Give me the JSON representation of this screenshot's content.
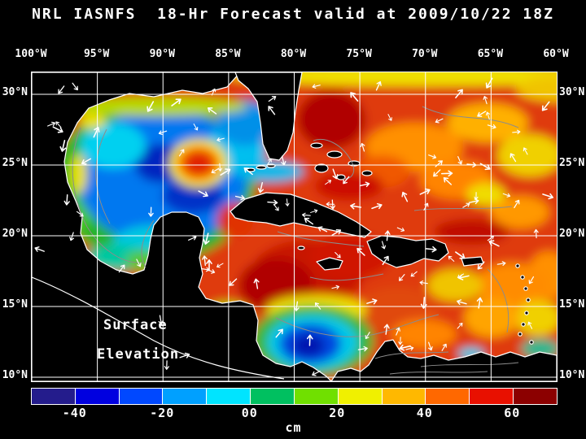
{
  "title": "NRL IASNFS  18-Hr Forecast valid at 2009/10/22 18Z",
  "axes": {
    "longitude_labels": [
      "100°W",
      "95°W",
      "90°W",
      "85°W",
      "80°W",
      "75°W",
      "70°W",
      "65°W",
      "60°W"
    ],
    "latitude_labels": [
      "30°N",
      "25°N",
      "20°N",
      "15°N",
      "10°N"
    ]
  },
  "map": {
    "annotation_line1": "Surface",
    "annotation_line2": "Elevation"
  },
  "colorbar": {
    "unit": "cm",
    "tick_labels": [
      "-40",
      "-20",
      "00",
      "20",
      "40",
      "60"
    ],
    "segment_colors": [
      "#241c8c",
      "#0000e0",
      "#0048ff",
      "#00a0ff",
      "#00e4ff",
      "#00c060",
      "#70e000",
      "#f0f000",
      "#ffb800",
      "#ff6800",
      "#e81000",
      "#8c0000"
    ]
  }
}
